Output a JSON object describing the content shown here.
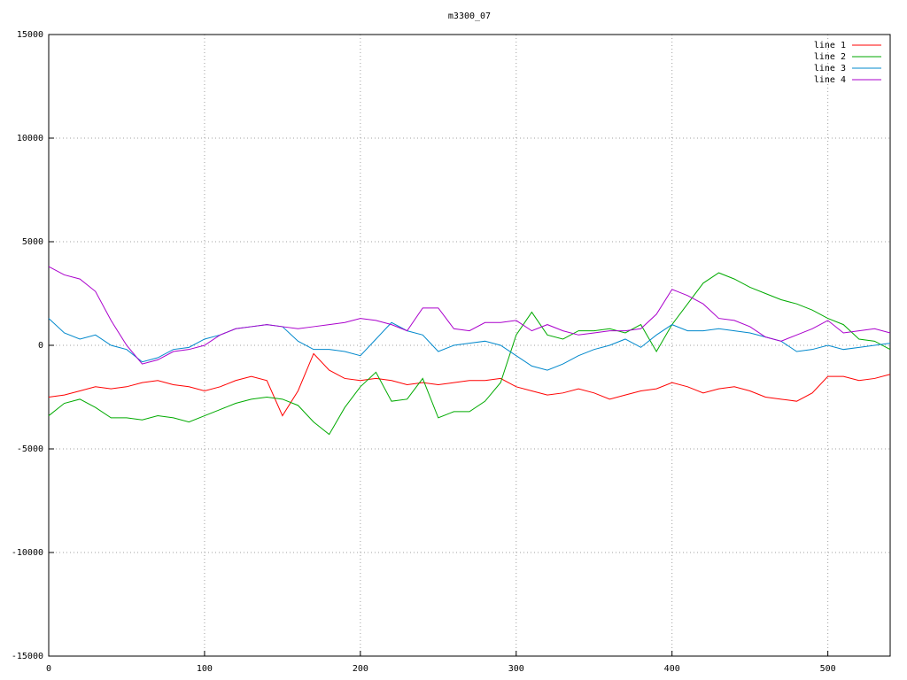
{
  "chart_data": {
    "type": "line",
    "title": "m3300_07",
    "x": [
      0,
      10,
      20,
      30,
      40,
      50,
      60,
      70,
      80,
      90,
      100,
      110,
      120,
      130,
      140,
      150,
      160,
      170,
      180,
      190,
      200,
      210,
      220,
      230,
      240,
      250,
      260,
      270,
      280,
      290,
      300,
      310,
      320,
      330,
      340,
      350,
      360,
      370,
      380,
      390,
      400,
      410,
      420,
      430,
      440,
      450,
      460,
      470,
      480,
      490,
      500,
      510,
      520,
      530,
      540
    ],
    "series": [
      {
        "name": "line 1",
        "color": "#ff0000",
        "values": [
          -2500,
          -2400,
          -2200,
          -2000,
          -2100,
          -2000,
          -1800,
          -1700,
          -1900,
          -2000,
          -2200,
          -2000,
          -1700,
          -1500,
          -1700,
          -3400,
          -2200,
          -400,
          -1200,
          -1600,
          -1700,
          -1600,
          -1700,
          -1900,
          -1800,
          -1900,
          -1800,
          -1700,
          -1700,
          -1600,
          -2000,
          -2200,
          -2400,
          -2300,
          -2100,
          -2300,
          -2600,
          -2400,
          -2200,
          -2100,
          -1800,
          -2000,
          -2300,
          -2100,
          -2000,
          -2200,
          -2500,
          -2600,
          -2700,
          -2300,
          -1500,
          -1500,
          -1700,
          -1600,
          -1400
        ]
      },
      {
        "name": "line 2",
        "color": "#00aa00",
        "values": [
          -3400,
          -2800,
          -2600,
          -3000,
          -3500,
          -3500,
          -3600,
          -3400,
          -3500,
          -3700,
          -3400,
          -3100,
          -2800,
          -2600,
          -2500,
          -2600,
          -2900,
          -3700,
          -4300,
          -3000,
          -2000,
          -1300,
          -2700,
          -2600,
          -1600,
          -3500,
          -3200,
          -3200,
          -2700,
          -1800,
          500,
          1600,
          500,
          300,
          700,
          700,
          800,
          600,
          1000,
          -300,
          1000,
          2000,
          3000,
          3500,
          3200,
          2800,
          2500,
          2200,
          2000,
          1700,
          1300,
          1000,
          300,
          200,
          -200
        ]
      },
      {
        "name": "line 3",
        "color": "#0088cc",
        "values": [
          1300,
          600,
          300,
          500,
          0,
          -200,
          -800,
          -600,
          -200,
          -100,
          300,
          500,
          800,
          900,
          1000,
          900,
          200,
          -200,
          -200,
          -300,
          -500,
          300,
          1100,
          700,
          500,
          -300,
          0,
          100,
          200,
          0,
          -500,
          -1000,
          -1200,
          -900,
          -500,
          -200,
          0,
          300,
          -100,
          500,
          1000,
          700,
          700,
          800,
          700,
          600,
          400,
          200,
          -300,
          -200,
          0,
          -200,
          -100,
          0,
          100
        ]
      },
      {
        "name": "line 4",
        "color": "#aa00cc",
        "values": [
          3800,
          3400,
          3200,
          2600,
          1200,
          0,
          -900,
          -700,
          -300,
          -200,
          0,
          500,
          800,
          900,
          1000,
          900,
          800,
          900,
          1000,
          1100,
          1300,
          1200,
          1000,
          700,
          1800,
          1800,
          800,
          700,
          1100,
          1100,
          1200,
          700,
          1000,
          700,
          500,
          600,
          700,
          700,
          800,
          1500,
          2700,
          2400,
          2000,
          1300,
          1200,
          900,
          400,
          200,
          500,
          800,
          1200,
          600,
          700,
          800,
          600
        ]
      }
    ],
    "xlim": [
      0,
      540
    ],
    "ylim": [
      -15000,
      15000
    ],
    "xticks": [
      0,
      100,
      200,
      300,
      400,
      500
    ],
    "yticks": [
      -15000,
      -10000,
      -5000,
      0,
      5000,
      10000,
      15000
    ],
    "grid": true,
    "legend": "top-right"
  }
}
